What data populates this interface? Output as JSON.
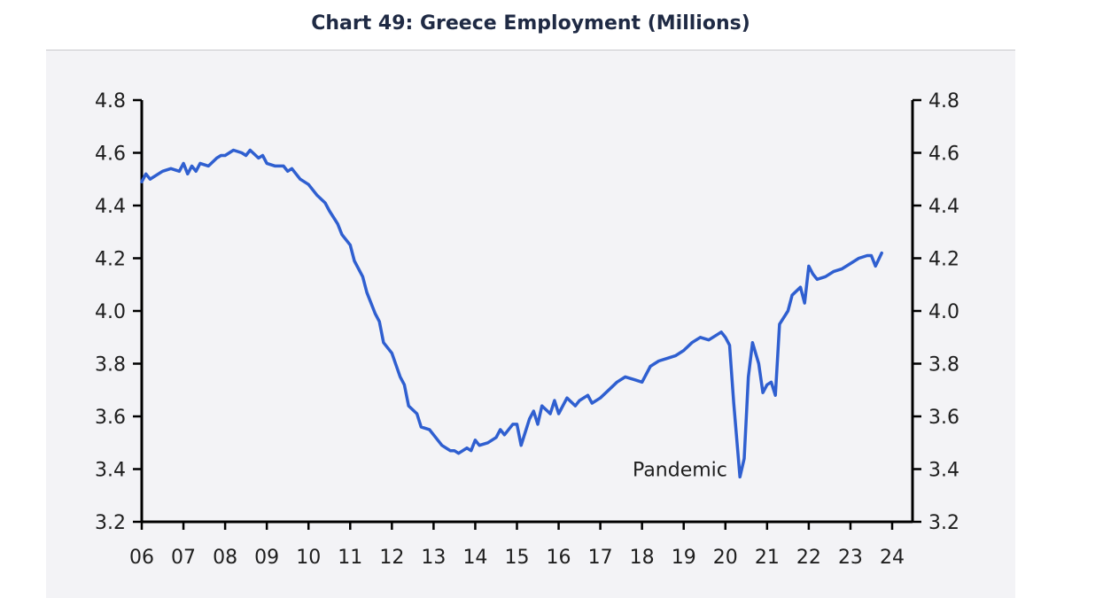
{
  "chart_data": {
    "type": "line",
    "title": "Chart 49: Greece Employment (Millions)",
    "xlabel": "",
    "ylabel": "",
    "ylim": [
      3.2,
      4.8
    ],
    "xlim": [
      2006,
      2024
    ],
    "yticks": [
      "3.2",
      "3.4",
      "3.6",
      "3.8",
      "4.0",
      "4.2",
      "4.4",
      "4.6",
      "4.8"
    ],
    "xticks": [
      "06",
      "07",
      "08",
      "09",
      "10",
      "11",
      "12",
      "13",
      "14",
      "15",
      "16",
      "17",
      "18",
      "19",
      "20",
      "21",
      "22",
      "23",
      "24"
    ],
    "annotations": [
      {
        "text": "Pandemic",
        "x": 2020.3,
        "y": 3.38
      }
    ],
    "legend": "none",
    "grid": false,
    "series": [
      {
        "color": "#2f5fd0",
        "x": [
          2006.0,
          2006.1,
          2006.2,
          2006.3,
          2006.5,
          2006.7,
          2006.9,
          2007.0,
          2007.1,
          2007.2,
          2007.3,
          2007.4,
          2007.6,
          2007.8,
          2007.9,
          2008.0,
          2008.2,
          2008.4,
          2008.5,
          2008.6,
          2008.8,
          2008.9,
          2009.0,
          2009.2,
          2009.4,
          2009.5,
          2009.6,
          2009.8,
          2010.0,
          2010.2,
          2010.4,
          2010.5,
          2010.7,
          2010.8,
          2011.0,
          2011.1,
          2011.3,
          2011.4,
          2011.6,
          2011.7,
          2011.8,
          2012.0,
          2012.2,
          2012.3,
          2012.4,
          2012.6,
          2012.7,
          2012.9,
          2013.0,
          2013.2,
          2013.4,
          2013.5,
          2013.6,
          2013.8,
          2013.9,
          2014.0,
          2014.1,
          2014.3,
          2014.5,
          2014.6,
          2014.7,
          2014.9,
          2015.0,
          2015.1,
          2015.3,
          2015.4,
          2015.5,
          2015.6,
          2015.8,
          2015.9,
          2016.0,
          2016.2,
          2016.4,
          2016.5,
          2016.7,
          2016.8,
          2017.0,
          2017.2,
          2017.4,
          2017.6,
          2017.8,
          2018.0,
          2018.2,
          2018.4,
          2018.6,
          2018.8,
          2019.0,
          2019.2,
          2019.4,
          2019.6,
          2019.8,
          2019.9,
          2020.0,
          2020.1,
          2020.2,
          2020.35,
          2020.45,
          2020.55,
          2020.65,
          2020.8,
          2020.9,
          2021.0,
          2021.1,
          2021.2,
          2021.3,
          2021.5,
          2021.6,
          2021.8,
          2021.9,
          2022.0,
          2022.1,
          2022.2,
          2022.4,
          2022.6,
          2022.8,
          2023.0,
          2023.2,
          2023.4,
          2023.5,
          2023.6,
          2023.75
        ],
        "values": [
          4.49,
          4.52,
          4.5,
          4.51,
          4.53,
          4.54,
          4.53,
          4.56,
          4.52,
          4.55,
          4.53,
          4.56,
          4.55,
          4.58,
          4.59,
          4.59,
          4.61,
          4.6,
          4.59,
          4.61,
          4.58,
          4.59,
          4.56,
          4.55,
          4.55,
          4.53,
          4.54,
          4.5,
          4.48,
          4.44,
          4.41,
          4.38,
          4.33,
          4.29,
          4.25,
          4.19,
          4.13,
          4.07,
          3.99,
          3.96,
          3.88,
          3.84,
          3.75,
          3.72,
          3.64,
          3.61,
          3.56,
          3.55,
          3.53,
          3.49,
          3.47,
          3.47,
          3.46,
          3.48,
          3.47,
          3.51,
          3.49,
          3.5,
          3.52,
          3.55,
          3.53,
          3.57,
          3.57,
          3.49,
          3.59,
          3.62,
          3.57,
          3.64,
          3.61,
          3.66,
          3.61,
          3.67,
          3.64,
          3.66,
          3.68,
          3.65,
          3.67,
          3.7,
          3.73,
          3.75,
          3.74,
          3.73,
          3.79,
          3.81,
          3.82,
          3.83,
          3.85,
          3.88,
          3.9,
          3.89,
          3.91,
          3.92,
          3.9,
          3.87,
          3.65,
          3.37,
          3.44,
          3.75,
          3.88,
          3.8,
          3.69,
          3.72,
          3.73,
          3.68,
          3.95,
          4.0,
          4.06,
          4.09,
          4.03,
          4.17,
          4.14,
          4.12,
          4.13,
          4.15,
          4.16,
          4.18,
          4.2,
          4.21,
          4.21,
          4.17,
          4.22
        ]
      }
    ]
  }
}
